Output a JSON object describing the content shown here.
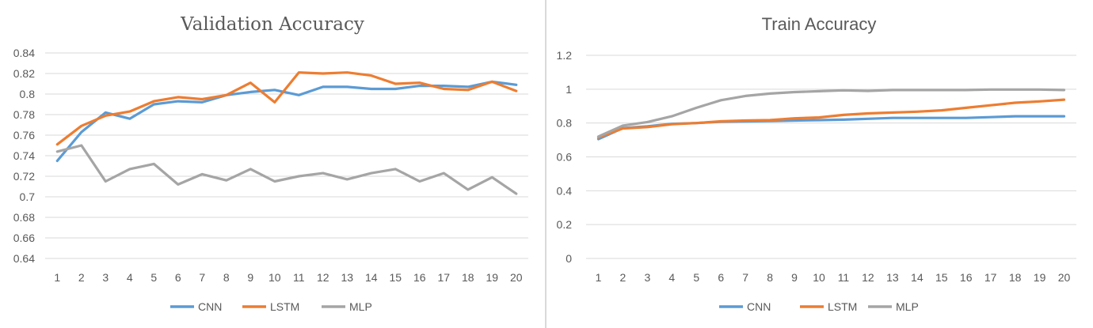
{
  "colors": {
    "CNN": "#5b9bd5",
    "LSTM": "#ed7d31",
    "MLP": "#a5a5a5"
  },
  "chart_data": [
    {
      "type": "line",
      "title": "Validation Accuracy",
      "x": [
        1,
        2,
        3,
        4,
        5,
        6,
        7,
        8,
        9,
        10,
        11,
        12,
        13,
        14,
        15,
        16,
        17,
        18,
        19,
        20
      ],
      "x_tick_labels": [
        "1",
        "2",
        "3",
        "4",
        "5",
        "6",
        "7",
        "8",
        "9",
        "10",
        "11",
        "12",
        "13",
        "14",
        "15",
        "16",
        "17",
        "18",
        "19",
        "20"
      ],
      "ylim": [
        0.64,
        0.84
      ],
      "y_ticks": [
        0.64,
        0.66,
        0.68,
        0.7,
        0.72,
        0.74,
        0.76,
        0.78,
        0.8,
        0.82,
        0.84
      ],
      "y_tick_labels": [
        "0.64",
        "0.66",
        "0.68",
        "0.7",
        "0.72",
        "0.74",
        "0.76",
        "0.78",
        "0.8",
        "0.82",
        "0.84"
      ],
      "grid": true,
      "legend": "bottom",
      "series": [
        {
          "name": "CNN",
          "values": [
            0.735,
            0.763,
            0.782,
            0.776,
            0.79,
            0.793,
            0.792,
            0.799,
            0.802,
            0.804,
            0.799,
            0.807,
            0.807,
            0.805,
            0.805,
            0.808,
            0.808,
            0.807,
            0.812,
            0.809
          ]
        },
        {
          "name": "LSTM",
          "values": [
            0.751,
            0.769,
            0.779,
            0.783,
            0.793,
            0.797,
            0.795,
            0.799,
            0.811,
            0.792,
            0.821,
            0.82,
            0.821,
            0.818,
            0.81,
            0.811,
            0.805,
            0.804,
            0.812,
            0.803
          ]
        },
        {
          "name": "MLP",
          "values": [
            0.744,
            0.75,
            0.715,
            0.727,
            0.732,
            0.712,
            0.722,
            0.716,
            0.727,
            0.715,
            0.72,
            0.723,
            0.717,
            0.723,
            0.727,
            0.715,
            0.723,
            0.707,
            0.719,
            0.703
          ]
        }
      ]
    },
    {
      "type": "line",
      "title": "Train Accuracy",
      "x": [
        1,
        2,
        3,
        4,
        5,
        6,
        7,
        8,
        9,
        10,
        11,
        12,
        13,
        14,
        15,
        16,
        17,
        18,
        19,
        20
      ],
      "x_tick_labels": [
        "1",
        "2",
        "3",
        "4",
        "5",
        "6",
        "7",
        "8",
        "9",
        "10",
        "11",
        "12",
        "13",
        "14",
        "15",
        "16",
        "17",
        "18",
        "19",
        "20"
      ],
      "ylim": [
        0,
        1.2
      ],
      "y_ticks": [
        0,
        0.2,
        0.4,
        0.6,
        0.8,
        1.0,
        1.2
      ],
      "y_tick_labels": [
        "0",
        "0.2",
        "0.4",
        "0.6",
        "0.8",
        "1",
        "1.2"
      ],
      "grid": true,
      "legend": "bottom",
      "series": [
        {
          "name": "CNN",
          "values": [
            0.705,
            0.77,
            0.78,
            0.795,
            0.8,
            0.808,
            0.81,
            0.812,
            0.815,
            0.817,
            0.82,
            0.825,
            0.83,
            0.83,
            0.83,
            0.83,
            0.835,
            0.84,
            0.84,
            0.84
          ]
        },
        {
          "name": "LSTM",
          "values": [
            0.715,
            0.768,
            0.776,
            0.793,
            0.8,
            0.81,
            0.815,
            0.817,
            0.828,
            0.833,
            0.848,
            0.857,
            0.862,
            0.867,
            0.875,
            0.89,
            0.905,
            0.92,
            0.928,
            0.938
          ]
        },
        {
          "name": "MLP",
          "values": [
            0.72,
            0.785,
            0.806,
            0.84,
            0.89,
            0.935,
            0.96,
            0.974,
            0.983,
            0.988,
            0.993,
            0.99,
            0.995,
            0.995,
            0.995,
            0.995,
            0.998,
            0.998,
            0.998,
            0.995
          ]
        }
      ]
    }
  ]
}
